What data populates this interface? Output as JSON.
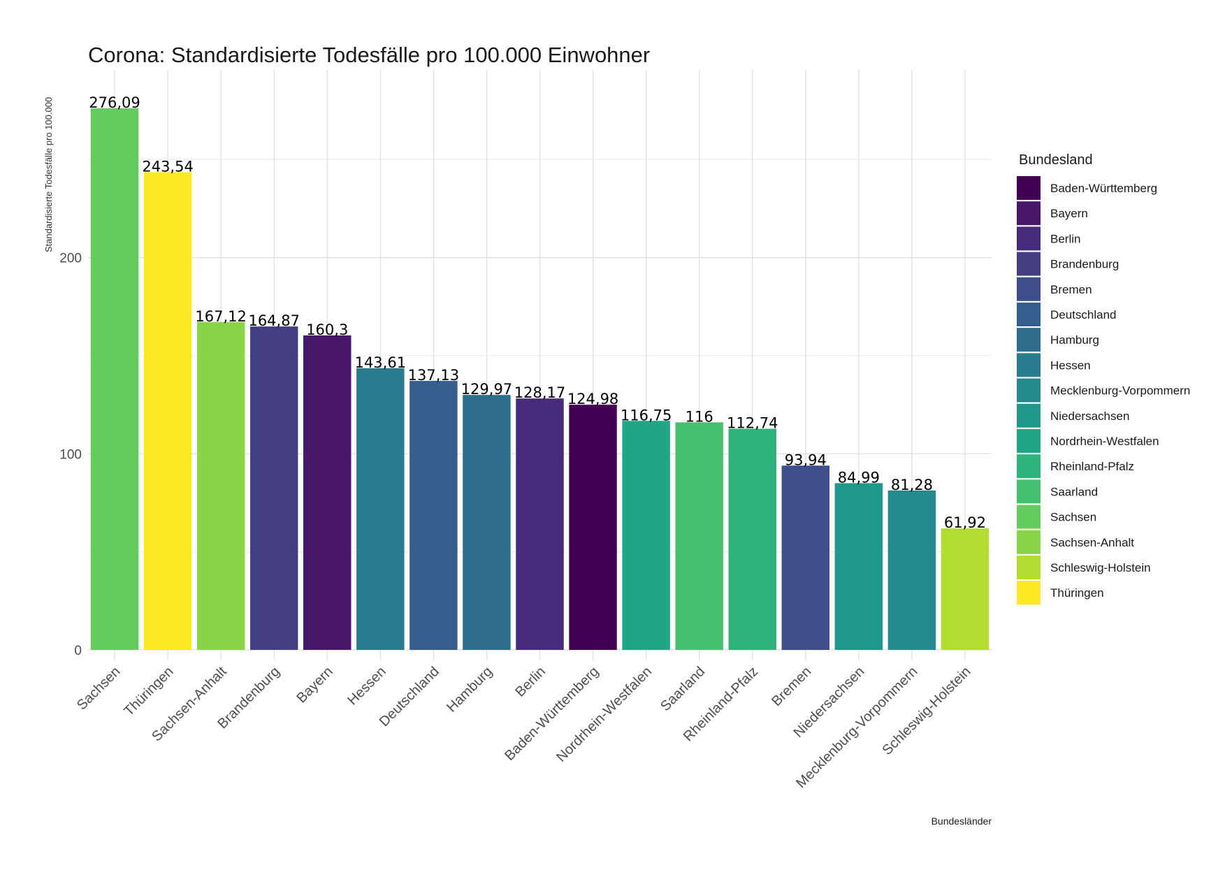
{
  "chart_data": {
    "type": "bar",
    "title": "Corona: Standardisierte Todesfälle pro 100.000 Einwohner",
    "xlabel": "Bundesländer",
    "ylabel": "Standardisierte Todesfälle pro 100.000",
    "ylim": [
      0,
      276.09
    ],
    "yticks": [
      0,
      100,
      200
    ],
    "grid": true,
    "legend_title": "Bundesland",
    "legend_position": "right",
    "categories": [
      "Sachsen",
      "Thüringen",
      "Sachsen-Anhalt",
      "Brandenburg",
      "Bayern",
      "Hessen",
      "Deutschland",
      "Hamburg",
      "Berlin",
      "Baden-Württemberg",
      "Nordrhein-Westfalen",
      "Saarland",
      "Rheinland-Pfalz",
      "Bremen",
      "Niedersachsen",
      "Mecklenburg-Vorpommern",
      "Schleswig-Holstein"
    ],
    "values": [
      276.09,
      243.54,
      167.12,
      164.87,
      160.3,
      143.61,
      137.13,
      129.97,
      128.17,
      124.98,
      116.75,
      116,
      112.74,
      93.94,
      84.99,
      81.28,
      61.92
    ],
    "value_labels": [
      "276,09",
      "243,54",
      "167,12",
      "164,87",
      "160,3",
      "143,61",
      "137,13",
      "129,97",
      "128,17",
      "124,98",
      "116,75",
      "116",
      "112,74",
      "93,94",
      "84,99",
      "81,28",
      "61,92"
    ],
    "legend": [
      {
        "name": "Baden-Württemberg",
        "color": "#440154"
      },
      {
        "name": "Bayern",
        "color": "#481769"
      },
      {
        "name": "Berlin",
        "color": "#472A7A"
      },
      {
        "name": "Brandenburg",
        "color": "#433D84"
      },
      {
        "name": "Bremen",
        "color": "#3D4E8A"
      },
      {
        "name": "Deutschland",
        "color": "#355E8D"
      },
      {
        "name": "Hamburg",
        "color": "#2E6D8E"
      },
      {
        "name": "Hessen",
        "color": "#297B8E"
      },
      {
        "name": "Mecklenburg-Vorpommern",
        "color": "#23898E"
      },
      {
        "name": "Niedersachsen",
        "color": "#1F978B"
      },
      {
        "name": "Nordrhein-Westfalen",
        "color": "#21A585"
      },
      {
        "name": "Rheinland-Pfalz",
        "color": "#2EB37C"
      },
      {
        "name": "Saarland",
        "color": "#46C06F"
      },
      {
        "name": "Sachsen",
        "color": "#65CB5E"
      },
      {
        "name": "Sachsen-Anhalt",
        "color": "#89D548"
      },
      {
        "name": "Schleswig-Holstein",
        "color": "#B0DD2F"
      },
      {
        "name": "Thüringen",
        "color": "#FDE725"
      }
    ]
  }
}
